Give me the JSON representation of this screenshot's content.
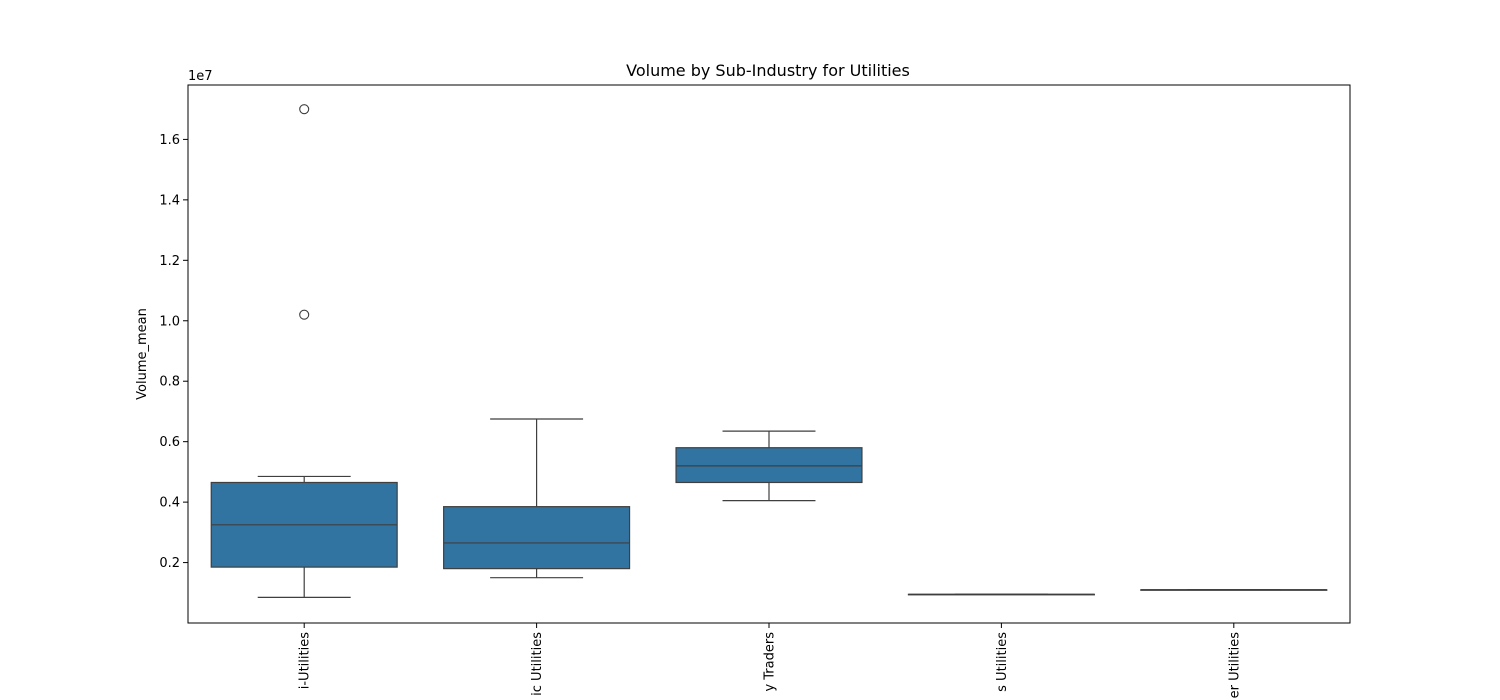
{
  "chart_data": {
    "type": "box",
    "title": "Volume by Sub-Industry for Utilities",
    "xlabel": "",
    "ylabel": "Volume_mean",
    "y_offset_label": "1e7",
    "y_scale": 10000000,
    "ylim": [
      1000,
      17800000
    ],
    "y_ticks": [
      2000000,
      4000000,
      6000000,
      8000000,
      10000000,
      12000000,
      14000000,
      16000000
    ],
    "y_tick_labels": [
      "0.2",
      "0.4",
      "0.6",
      "0.8",
      "1.0",
      "1.2",
      "1.4",
      "1.6"
    ],
    "x_tick_rotation": "vertical",
    "box_color": "#3274a1",
    "line_color": "#3f3f3f",
    "categories": [
      "Multi-Utilities",
      "Electric Utilities",
      "Independent Power Producers & Energy Traders",
      "Gas Utilities",
      "Water Utilities"
    ],
    "categories_visible": [
      "i-Utilities",
      "ic Utilities",
      "y Traders",
      "s Utilities",
      "er Utilities"
    ],
    "boxes": [
      {
        "whisker_low": 850000,
        "q1": 1850000,
        "median": 3250000,
        "q3": 4650000,
        "whisker_high": 4850000,
        "outliers": [
          10200000,
          17000000
        ]
      },
      {
        "whisker_low": 1500000,
        "q1": 1800000,
        "median": 2650000,
        "q3": 3850000,
        "whisker_high": 6750000,
        "outliers": []
      },
      {
        "whisker_low": 4050000,
        "q1": 4650000,
        "median": 5200000,
        "q3": 5800000,
        "whisker_high": 6350000,
        "outliers": []
      },
      {
        "whisker_low": 950000,
        "q1": 950000,
        "median": 950000,
        "q3": 950000,
        "whisker_high": 950000,
        "outliers": []
      },
      {
        "whisker_low": 1100000,
        "q1": 1100000,
        "median": 1100000,
        "q3": 1100000,
        "whisker_high": 1100000,
        "outliers": []
      }
    ],
    "grid": false,
    "legend": "none"
  }
}
